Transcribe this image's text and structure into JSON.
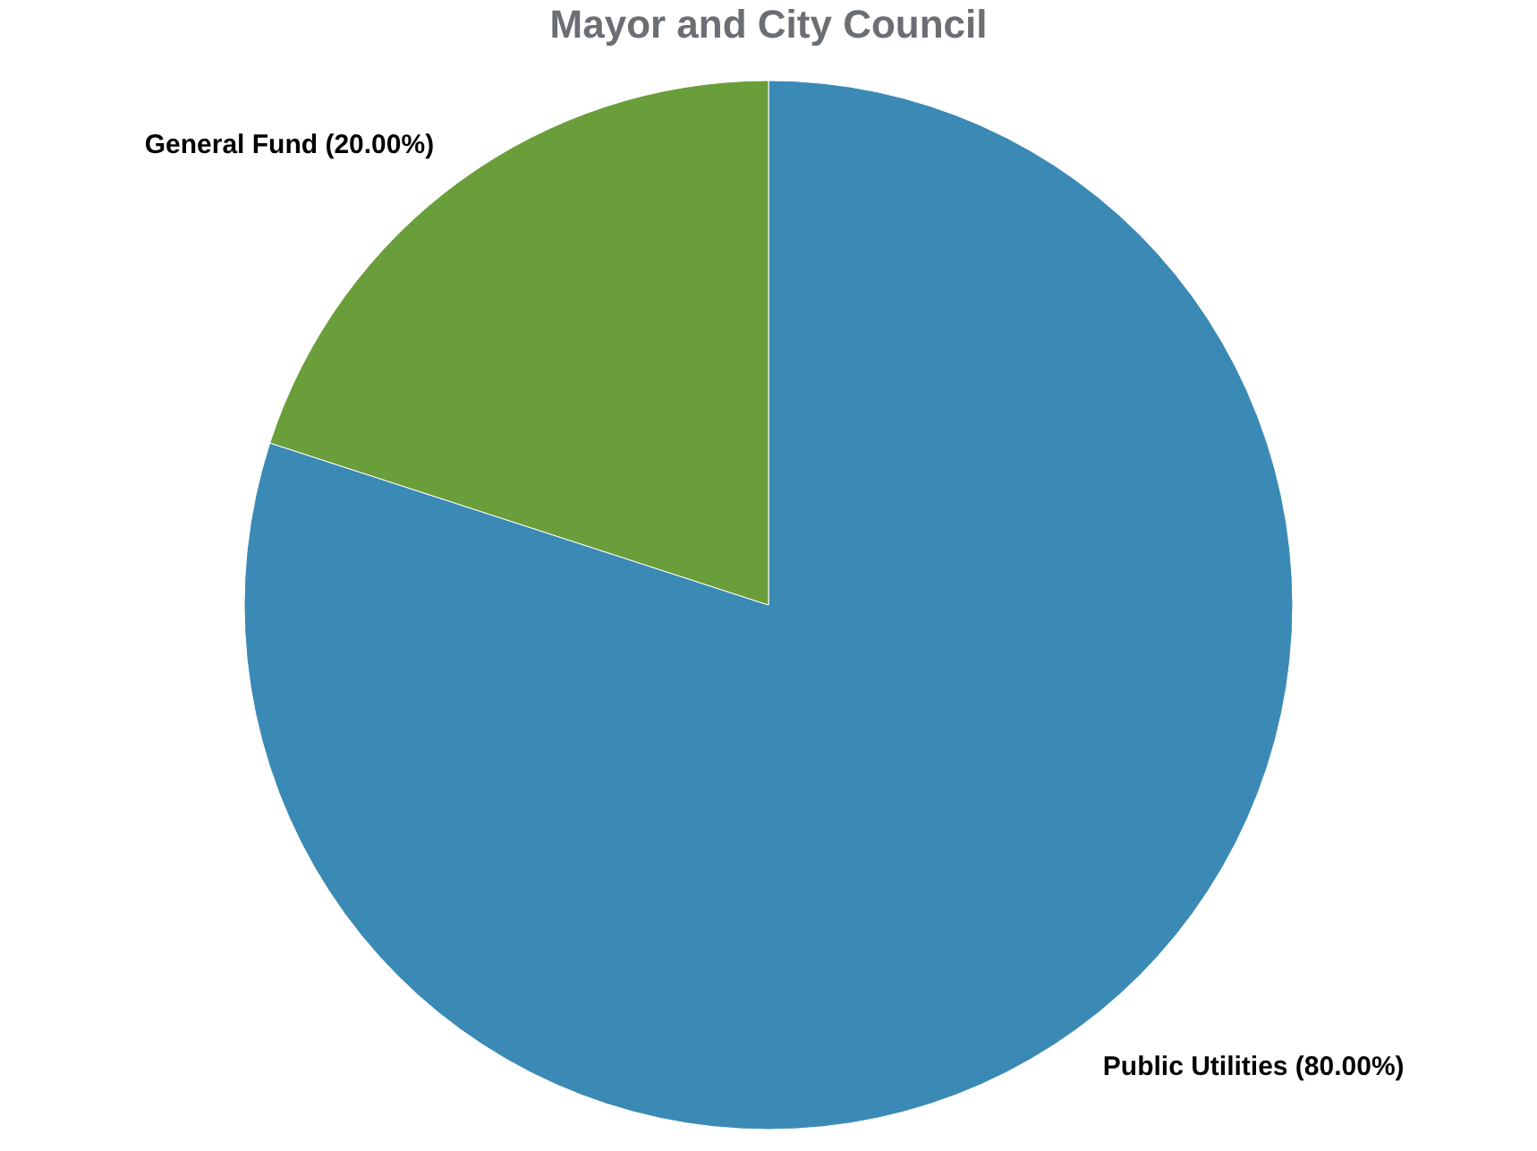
{
  "chart_data": {
    "type": "pie",
    "title": "Mayor and City Council",
    "categories": [
      "Public Utilities (80.00%)",
      "General Fund (20.00%)"
    ],
    "values": [
      80,
      20
    ],
    "colors": [
      "#3b8ab5",
      "#6a9e3a"
    ],
    "legend": false
  }
}
